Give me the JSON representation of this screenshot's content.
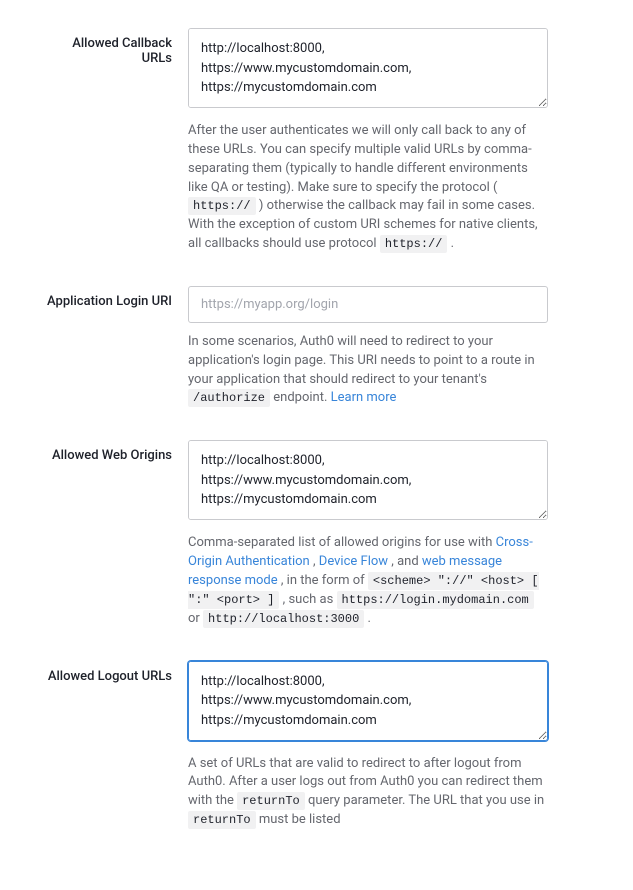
{
  "fields": {
    "callback": {
      "label": "Allowed Callback URLs",
      "value": "http://localhost:8000, https://www.mycustomdomain.com, https://mycustomdomain.com",
      "help_before_code1": "After the user authenticates we will only call back to any of these URLs. You can specify multiple valid URLs by comma-separating them (typically to handle different environments like QA or testing). Make sure to specify the protocol (",
      "code1": "https://",
      "help_mid1": ") otherwise the callback may fail in some cases. With the exception of custom URI schemes for native clients, all callbacks should use protocol ",
      "code2": "https://",
      "help_end": "."
    },
    "login_uri": {
      "label": "Application Login URI",
      "placeholder": "https://myapp.org/login",
      "value": "",
      "help_before_code": "In some scenarios, Auth0 will need to redirect to your application's login page. This URI needs to point to a route in your application that should redirect to your tenant's ",
      "code": "/authorize",
      "help_after_code": " endpoint. ",
      "link_text": "Learn more"
    },
    "web_origins": {
      "label": "Allowed Web Origins",
      "value": "http://localhost:8000, https://www.mycustomdomain.com, https://mycustomdomain.com",
      "help_prefix": "Comma-separated list of allowed origins for use with ",
      "link1": "Cross-Origin Authentication",
      "sep1": ", ",
      "link2": "Device Flow",
      "sep2": ", and ",
      "link3": "web message response mode",
      "help_mid": ", in the form of ",
      "code1": "<scheme> \"://\" <host> [ \":\" <port> ]",
      "help_mid2": ", such as ",
      "code2": "https://login.mydomain.com",
      "or_text": " or ",
      "code3": "http://localhost:3000",
      "help_end": "."
    },
    "logout": {
      "label": "Allowed Logout URLs",
      "value": "http://localhost:8000, https://www.mycustomdomain.com, https://mycustomdomain.com",
      "help_before_code1": "A set of URLs that are valid to redirect to after logout from Auth0. After a user logs out from Auth0 you can redirect them with the ",
      "code1": "returnTo",
      "help_mid": " query parameter. The URL that you use in ",
      "code2": "returnTo",
      "help_after": " must be listed"
    }
  },
  "colors": {
    "text_primary": "#1e212a",
    "text_secondary": "#65676e",
    "border": "#c9cace",
    "link": "#3885d9",
    "code_bg": "#f1f1f2",
    "focus": "#3885d9"
  }
}
